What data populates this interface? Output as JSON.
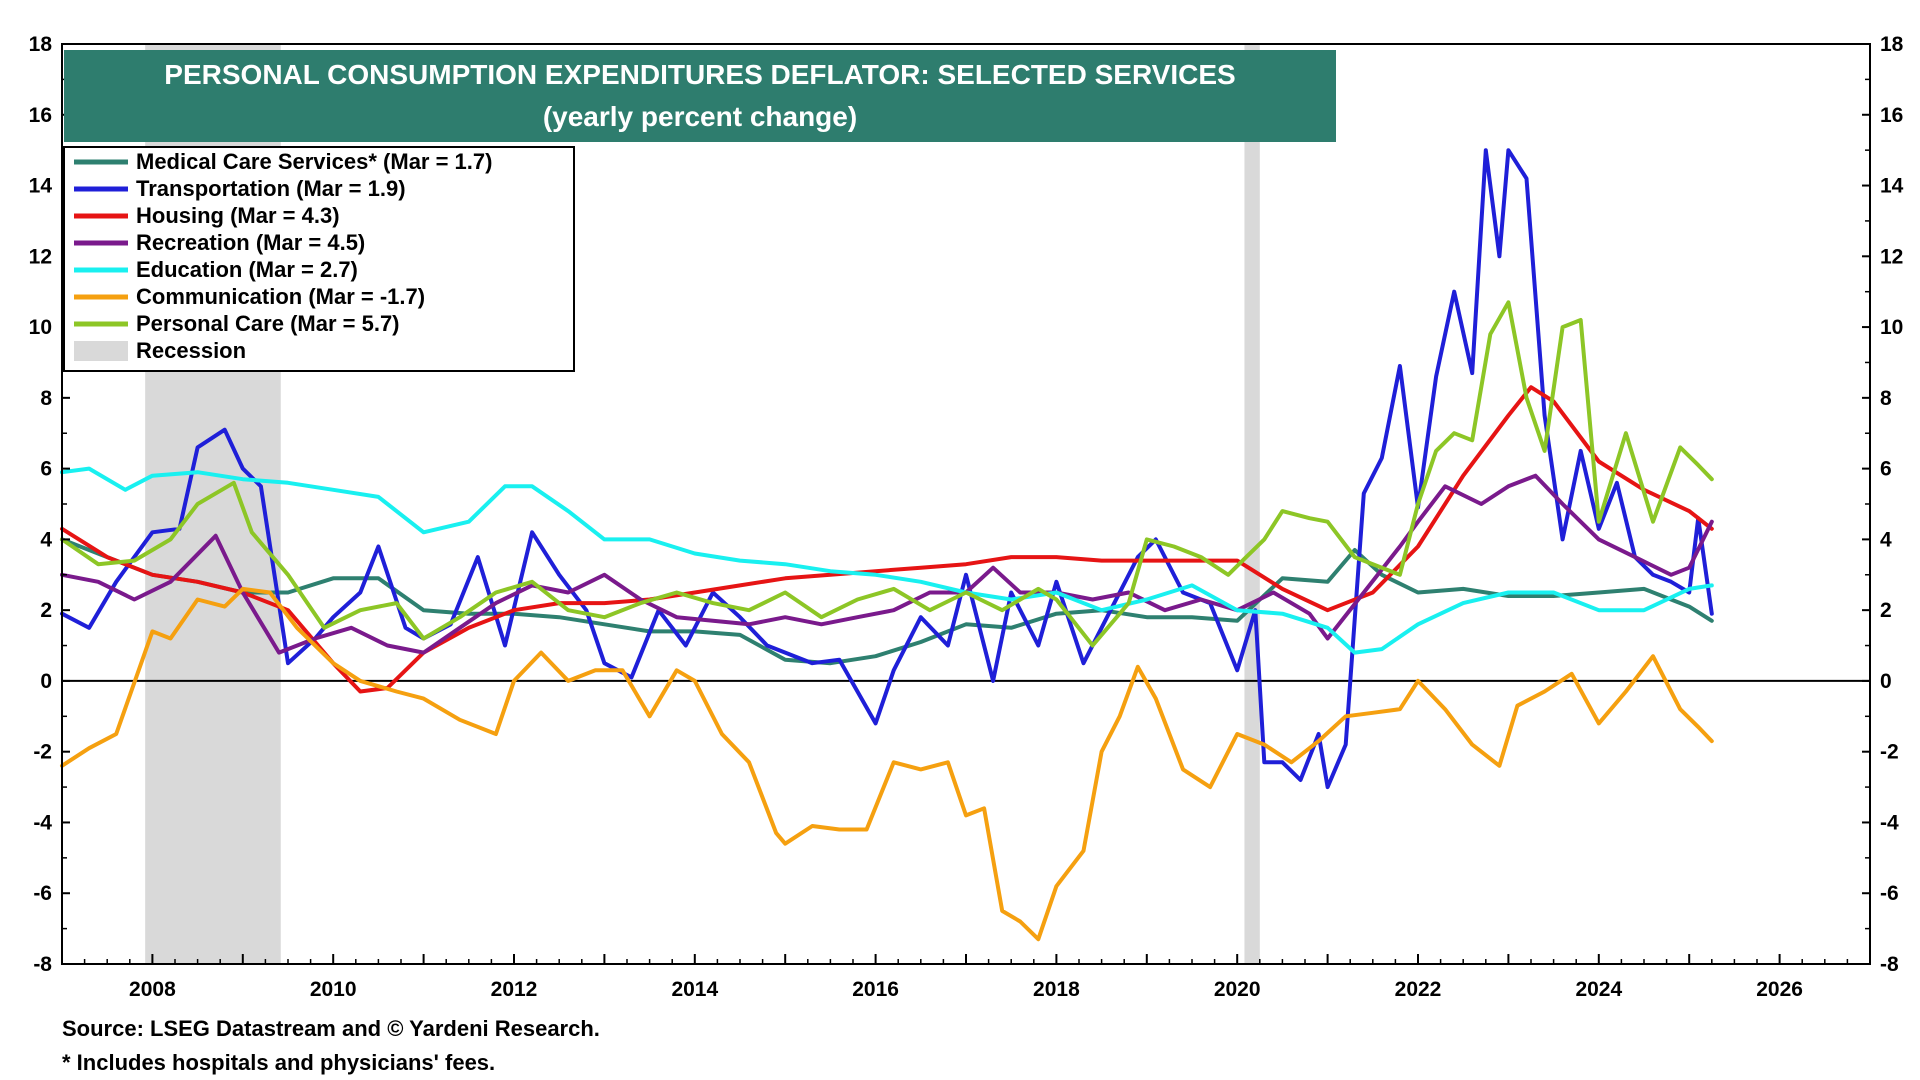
{
  "footer": {
    "source": "Source: LSEG Datastream and © Yardeni Research.",
    "note": "* Includes hospitals and physicians' fees."
  },
  "chart_data": {
    "type": "line",
    "title": "PERSONAL CONSUMPTION EXPENDITURES DEFLATOR: SELECTED SERVICES",
    "subtitle": "(yearly percent change)",
    "title_bg": "#2e7d6e",
    "ylim": [
      -8,
      18
    ],
    "xlim": [
      2007.0,
      2027.0
    ],
    "y_ticks": [
      -8,
      -6,
      -4,
      -2,
      0,
      2,
      4,
      6,
      8,
      10,
      12,
      14,
      16,
      18
    ],
    "y_tick_labels": [
      "-8",
      "-6",
      "-4",
      "-2",
      "0",
      "2",
      "4",
      "6",
      "8",
      "10",
      "12",
      "14",
      "16",
      "18"
    ],
    "x_ticks": [
      2008,
      2010,
      2012,
      2014,
      2016,
      2018,
      2020,
      2022,
      2024,
      2026
    ],
    "x_tick_labels": [
      "2008",
      "2010",
      "2012",
      "2014",
      "2016",
      "2018",
      "2020",
      "2022",
      "2024",
      "2026"
    ],
    "legend_position": "top-left",
    "recessions": [
      {
        "start": 2007.92,
        "end": 2009.42
      },
      {
        "start": 2020.08,
        "end": 2020.25
      }
    ],
    "recession_legend": "Recession",
    "recession_color": "#d9d9d9",
    "series": [
      {
        "name": "Medical Care Services*  (Mar = 1.7)",
        "color": "#2e8070",
        "x": [
          2007.0,
          2007.5,
          2008.0,
          2008.5,
          2009.0,
          2009.5,
          2010.0,
          2010.5,
          2011.0,
          2011.5,
          2012.0,
          2012.5,
          2013.0,
          2013.5,
          2014.0,
          2014.5,
          2015.0,
          2015.5,
          2016.0,
          2016.5,
          2017.0,
          2017.5,
          2018.0,
          2018.5,
          2019.0,
          2019.5,
          2020.0,
          2020.5,
          2021.0,
          2021.3,
          2021.6,
          2022.0,
          2022.5,
          2023.0,
          2023.5,
          2024.0,
          2024.5,
          2025.0,
          2025.25
        ],
        "y": [
          4.0,
          3.5,
          3.0,
          2.8,
          2.5,
          2.5,
          2.9,
          2.9,
          2.0,
          1.9,
          1.9,
          1.8,
          1.6,
          1.4,
          1.4,
          1.3,
          0.6,
          0.5,
          0.7,
          1.1,
          1.6,
          1.5,
          1.9,
          2.0,
          1.8,
          1.8,
          1.7,
          2.9,
          2.8,
          3.7,
          3.0,
          2.5,
          2.6,
          2.4,
          2.4,
          2.5,
          2.6,
          2.1,
          1.7
        ]
      },
      {
        "name": "Transportation (Mar = 1.9)",
        "color": "#1f1fd8",
        "x": [
          2007.0,
          2007.3,
          2007.6,
          2008.0,
          2008.3,
          2008.5,
          2008.8,
          2009.0,
          2009.2,
          2009.5,
          2009.8,
          2010.0,
          2010.3,
          2010.5,
          2010.8,
          2011.0,
          2011.3,
          2011.6,
          2011.9,
          2012.2,
          2012.5,
          2012.8,
          2013.0,
          2013.3,
          2013.6,
          2013.9,
          2014.2,
          2014.5,
          2014.8,
          2015.0,
          2015.3,
          2015.6,
          2016.0,
          2016.2,
          2016.5,
          2016.8,
          2017.0,
          2017.3,
          2017.5,
          2017.8,
          2018.0,
          2018.3,
          2018.6,
          2018.9,
          2019.1,
          2019.4,
          2019.7,
          2020.0,
          2020.2,
          2020.3,
          2020.5,
          2020.7,
          2020.9,
          2021.0,
          2021.2,
          2021.4,
          2021.6,
          2021.8,
          2022.0,
          2022.2,
          2022.4,
          2022.6,
          2022.75,
          2022.9,
          2023.0,
          2023.2,
          2023.4,
          2023.6,
          2023.8,
          2024.0,
          2024.2,
          2024.4,
          2024.6,
          2024.8,
          2025.0,
          2025.1,
          2025.25
        ],
        "y": [
          1.9,
          1.5,
          2.8,
          4.2,
          4.3,
          6.6,
          7.1,
          6.0,
          5.5,
          0.5,
          1.2,
          1.8,
          2.5,
          3.8,
          1.5,
          1.2,
          1.6,
          3.5,
          1.0,
          4.2,
          3.0,
          2.0,
          0.5,
          0.1,
          2.0,
          1.0,
          2.5,
          1.8,
          1.0,
          0.8,
          0.5,
          0.6,
          -1.2,
          0.3,
          1.8,
          1.0,
          3.0,
          0.0,
          2.5,
          1.0,
          2.8,
          0.5,
          2.0,
          3.5,
          4.0,
          2.5,
          2.2,
          0.3,
          2.0,
          -2.3,
          -2.3,
          -2.8,
          -1.5,
          -3.0,
          -1.8,
          5.3,
          6.3,
          8.9,
          4.9,
          8.6,
          11.0,
          8.7,
          15.0,
          12.0,
          15.0,
          14.2,
          7.5,
          4.0,
          6.5,
          4.3,
          5.6,
          3.5,
          3.0,
          2.8,
          2.5,
          4.6,
          1.9
        ]
      },
      {
        "name": "Housing (Mar = 4.3)",
        "color": "#e61414",
        "x": [
          2007.0,
          2007.5,
          2008.0,
          2008.5,
          2009.0,
          2009.5,
          2010.0,
          2010.3,
          2010.6,
          2011.0,
          2011.5,
          2012.0,
          2012.5,
          2013.0,
          2013.5,
          2014.0,
          2014.5,
          2015.0,
          2015.5,
          2016.0,
          2016.5,
          2017.0,
          2017.5,
          2018.0,
          2018.5,
          2019.0,
          2019.5,
          2020.0,
          2020.5,
          2021.0,
          2021.5,
          2022.0,
          2022.5,
          2023.0,
          2023.25,
          2023.5,
          2024.0,
          2024.5,
          2025.0,
          2025.25
        ],
        "y": [
          4.3,
          3.5,
          3.0,
          2.8,
          2.5,
          2.0,
          0.5,
          -0.3,
          -0.2,
          0.8,
          1.5,
          2.0,
          2.2,
          2.2,
          2.3,
          2.5,
          2.7,
          2.9,
          3.0,
          3.1,
          3.2,
          3.3,
          3.5,
          3.5,
          3.4,
          3.4,
          3.4,
          3.4,
          2.6,
          2.0,
          2.5,
          3.8,
          5.8,
          7.5,
          8.3,
          7.9,
          6.2,
          5.4,
          4.8,
          4.3
        ]
      },
      {
        "name": "Recreation (Mar = 4.5)",
        "color": "#7a1a8c",
        "x": [
          2007.0,
          2007.4,
          2007.8,
          2008.2,
          2008.7,
          2009.0,
          2009.4,
          2009.8,
          2010.2,
          2010.6,
          2011.0,
          2011.4,
          2011.8,
          2012.2,
          2012.6,
          2013.0,
          2013.4,
          2013.8,
          2014.2,
          2014.6,
          2015.0,
          2015.4,
          2015.8,
          2016.2,
          2016.6,
          2017.0,
          2017.3,
          2017.6,
          2018.0,
          2018.4,
          2018.8,
          2019.2,
          2019.6,
          2020.0,
          2020.4,
          2020.8,
          2021.0,
          2021.4,
          2021.8,
          2022.0,
          2022.3,
          2022.7,
          2023.0,
          2023.3,
          2023.6,
          2024.0,
          2024.4,
          2024.8,
          2025.0,
          2025.25
        ],
        "y": [
          3.0,
          2.8,
          2.3,
          2.8,
          4.1,
          2.5,
          0.8,
          1.2,
          1.5,
          1.0,
          0.8,
          1.5,
          2.2,
          2.7,
          2.5,
          3.0,
          2.3,
          1.8,
          1.7,
          1.6,
          1.8,
          1.6,
          1.8,
          2.0,
          2.5,
          2.5,
          3.2,
          2.5,
          2.5,
          2.3,
          2.5,
          2.0,
          2.3,
          2.0,
          2.5,
          1.9,
          1.2,
          2.5,
          3.8,
          4.5,
          5.5,
          5.0,
          5.5,
          5.8,
          5.0,
          4.0,
          3.5,
          3.0,
          3.2,
          4.5
        ]
      },
      {
        "name": "Education (Mar = 2.7)",
        "color": "#19f0f0",
        "x": [
          2007.0,
          2007.3,
          2007.7,
          2008.0,
          2008.5,
          2009.0,
          2009.5,
          2010.0,
          2010.5,
          2011.0,
          2011.5,
          2011.9,
          2012.2,
          2012.6,
          2013.0,
          2013.5,
          2014.0,
          2014.5,
          2015.0,
          2015.5,
          2016.0,
          2016.5,
          2017.0,
          2017.5,
          2018.0,
          2018.5,
          2019.0,
          2019.5,
          2020.0,
          2020.5,
          2021.0,
          2021.3,
          2021.6,
          2022.0,
          2022.5,
          2023.0,
          2023.5,
          2024.0,
          2024.5,
          2025.0,
          2025.25
        ],
        "y": [
          5.9,
          6.0,
          5.4,
          5.8,
          5.9,
          5.7,
          5.6,
          5.4,
          5.2,
          4.2,
          4.5,
          5.5,
          5.5,
          4.8,
          4.0,
          4.0,
          3.6,
          3.4,
          3.3,
          3.1,
          3.0,
          2.8,
          2.5,
          2.3,
          2.5,
          2.0,
          2.3,
          2.7,
          2.0,
          1.9,
          1.5,
          0.8,
          0.9,
          1.6,
          2.2,
          2.5,
          2.5,
          2.0,
          2.0,
          2.6,
          2.7
        ]
      },
      {
        "name": "Communication (Mar = -1.7)",
        "color": "#f5a010",
        "x": [
          2007.0,
          2007.3,
          2007.6,
          2008.0,
          2008.2,
          2008.5,
          2008.8,
          2009.0,
          2009.3,
          2009.6,
          2010.0,
          2010.3,
          2010.7,
          2011.0,
          2011.4,
          2011.8,
          2012.0,
          2012.3,
          2012.6,
          2012.9,
          2013.2,
          2013.5,
          2013.8,
          2014.0,
          2014.3,
          2014.6,
          2014.9,
          2015.0,
          2015.3,
          2015.6,
          2015.9,
          2016.2,
          2016.5,
          2016.8,
          2017.0,
          2017.2,
          2017.4,
          2017.6,
          2017.8,
          2018.0,
          2018.3,
          2018.5,
          2018.7,
          2018.9,
          2019.1,
          2019.4,
          2019.7,
          2020.0,
          2020.3,
          2020.6,
          2020.9,
          2021.2,
          2021.5,
          2021.8,
          2022.0,
          2022.3,
          2022.6,
          2022.9,
          2023.1,
          2023.4,
          2023.7,
          2024.0,
          2024.3,
          2024.6,
          2024.9,
          2025.1,
          2025.25
        ],
        "y": [
          -2.4,
          -1.9,
          -1.5,
          1.4,
          1.2,
          2.3,
          2.1,
          2.6,
          2.5,
          1.5,
          0.5,
          0.0,
          -0.3,
          -0.5,
          -1.1,
          -1.5,
          0.0,
          0.8,
          0.0,
          0.3,
          0.3,
          -1.0,
          0.3,
          0.0,
          -1.5,
          -2.3,
          -4.3,
          -4.6,
          -4.1,
          -4.2,
          -4.2,
          -2.3,
          -2.5,
          -2.3,
          -3.8,
          -3.6,
          -6.5,
          -6.8,
          -7.3,
          -5.8,
          -4.8,
          -2.0,
          -1.0,
          0.4,
          -0.5,
          -2.5,
          -3.0,
          -1.5,
          -1.8,
          -2.3,
          -1.7,
          -1.0,
          -0.9,
          -0.8,
          0.0,
          -0.8,
          -1.8,
          -2.4,
          -0.7,
          -0.3,
          0.2,
          -1.2,
          -0.3,
          0.7,
          -0.8,
          -1.3,
          -1.7
        ]
      },
      {
        "name": "Personal Care (Mar = 5.7)",
        "color": "#8dc626",
        "x": [
          2007.0,
          2007.4,
          2007.8,
          2008.2,
          2008.5,
          2008.9,
          2009.1,
          2009.5,
          2009.9,
          2010.3,
          2010.7,
          2011.0,
          2011.4,
          2011.8,
          2012.2,
          2012.6,
          2013.0,
          2013.4,
          2013.8,
          2014.2,
          2014.6,
          2015.0,
          2015.4,
          2015.8,
          2016.2,
          2016.6,
          2017.0,
          2017.4,
          2017.8,
          2018.0,
          2018.4,
          2018.8,
          2019.0,
          2019.3,
          2019.6,
          2019.9,
          2020.1,
          2020.3,
          2020.5,
          2020.8,
          2021.0,
          2021.3,
          2021.6,
          2021.8,
          2022.0,
          2022.2,
          2022.4,
          2022.6,
          2022.8,
          2023.0,
          2023.2,
          2023.4,
          2023.6,
          2023.8,
          2024.0,
          2024.3,
          2024.6,
          2024.9,
          2025.1,
          2025.25
        ],
        "y": [
          4.0,
          3.3,
          3.4,
          4.0,
          5.0,
          5.6,
          4.2,
          3.0,
          1.5,
          2.0,
          2.2,
          1.2,
          1.8,
          2.5,
          2.8,
          2.0,
          1.8,
          2.2,
          2.5,
          2.2,
          2.0,
          2.5,
          1.8,
          2.3,
          2.6,
          2.0,
          2.5,
          2.0,
          2.6,
          2.3,
          1.0,
          2.2,
          4.0,
          3.8,
          3.5,
          3.0,
          3.5,
          4.0,
          4.8,
          4.6,
          4.5,
          3.5,
          3.2,
          3.0,
          5.0,
          6.5,
          7.0,
          6.8,
          9.8,
          10.7,
          8.0,
          6.5,
          10.0,
          10.2,
          4.5,
          7.0,
          4.5,
          6.6,
          6.1,
          5.7
        ]
      }
    ]
  }
}
